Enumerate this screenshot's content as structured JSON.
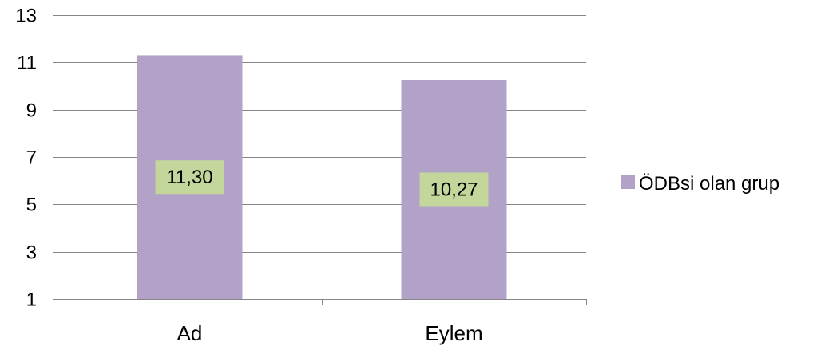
{
  "chart_data": {
    "type": "bar",
    "categories": [
      "Ad",
      "Eylem"
    ],
    "series": [
      {
        "name": "ÖDBsi olan grup",
        "values": [
          11.3,
          10.27
        ],
        "data_labels": [
          "11,30",
          "10,27"
        ],
        "color": "#B2A2C7"
      }
    ],
    "yticks": [
      "1",
      "3",
      "5",
      "7",
      "9",
      "11",
      "13"
    ],
    "ylim": [
      1,
      13
    ],
    "grid": true,
    "legend_position": "right",
    "data_label_background": "#C3D69B",
    "gridline_color": "#868686",
    "title": "",
    "xlabel": "",
    "ylabel": ""
  }
}
